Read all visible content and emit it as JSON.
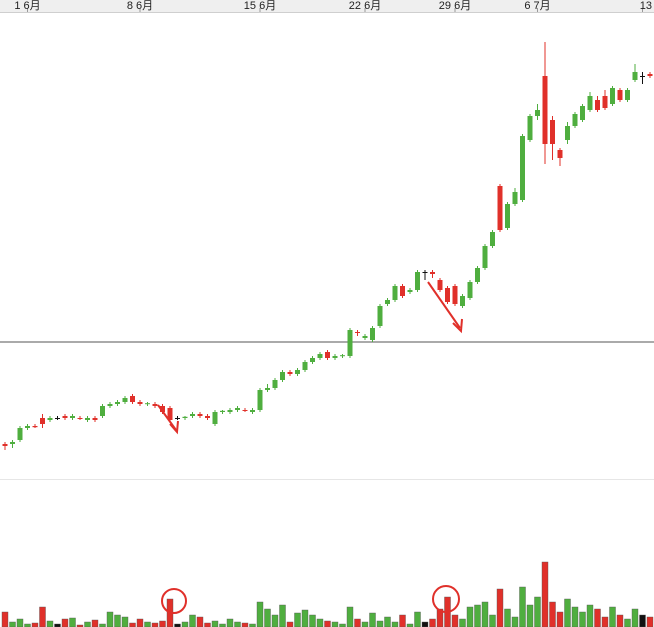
{
  "chart_data": {
    "type": "candlestick",
    "xticks": [
      {
        "value": 3,
        "label": "1 6月"
      },
      {
        "value": 18,
        "label": "8 6月"
      },
      {
        "value": 34,
        "label": "15 6月"
      },
      {
        "value": 48,
        "label": "22 6月"
      },
      {
        "value": 60,
        "label": "29 6月"
      },
      {
        "value": 71,
        "label": "6 7月"
      },
      {
        "value": 85,
        "label": "13"
      }
    ],
    "ylim": [
      0,
      120
    ],
    "vlim": [
      0,
      150
    ],
    "hline": 34.5,
    "up_color": "#4fae3f",
    "down_color": "#e0302a",
    "flat_color": "#111111",
    "candles": [
      [
        9,
        8.5,
        9.5,
        7.5
      ],
      [
        9,
        9.5,
        10,
        8
      ],
      [
        10,
        13,
        13.5,
        9.5
      ],
      [
        13,
        13.5,
        14,
        12.5
      ],
      [
        13.5,
        13.2,
        14,
        13
      ],
      [
        15.5,
        14,
        16.5,
        13
      ],
      [
        15,
        15.5,
        16,
        14.5
      ],
      [
        15.5,
        15.5,
        16,
        15
      ],
      [
        16,
        15.5,
        16.5,
        15
      ],
      [
        15.5,
        16,
        16.5,
        15
      ],
      [
        15.5,
        15.3,
        16,
        15
      ],
      [
        15,
        15.5,
        16,
        14.5
      ],
      [
        15.5,
        15,
        16,
        14.5
      ],
      [
        16,
        18.5,
        19,
        15.5
      ],
      [
        18.5,
        19,
        19.5,
        18
      ],
      [
        19,
        19.5,
        20,
        18.5
      ],
      [
        19.5,
        20.5,
        21,
        19
      ],
      [
        21,
        19.5,
        21.5,
        19
      ],
      [
        19.5,
        19,
        20,
        18.5
      ],
      [
        19,
        19.2,
        19.5,
        18.5
      ],
      [
        19,
        18.5,
        19.5,
        18
      ],
      [
        18.5,
        17,
        19,
        16.5
      ],
      [
        18,
        15,
        18.5,
        14.5
      ],
      [
        15.5,
        15.5,
        16,
        15
      ],
      [
        15.5,
        15.8,
        16,
        15
      ],
      [
        16,
        16.5,
        17,
        15.5
      ],
      [
        16.5,
        16,
        17,
        15.5
      ],
      [
        16,
        15.5,
        16.5,
        15
      ],
      [
        14,
        17,
        17.5,
        13.5
      ],
      [
        17,
        17.3,
        17.5,
        16.5
      ],
      [
        17,
        17.5,
        18,
        16.5
      ],
      [
        17.5,
        18,
        18.5,
        17
      ],
      [
        17.5,
        17.3,
        18,
        17
      ],
      [
        17,
        17.5,
        18,
        16.5
      ],
      [
        17.5,
        22.5,
        23,
        17
      ],
      [
        22.5,
        23,
        24,
        22
      ],
      [
        23,
        25,
        25.5,
        22.5
      ],
      [
        25,
        27,
        27.5,
        24.5
      ],
      [
        27,
        26.5,
        27.5,
        26
      ],
      [
        26.5,
        27.5,
        28,
        26
      ],
      [
        27.5,
        29.5,
        30,
        27
      ],
      [
        29.5,
        30.5,
        31,
        29
      ],
      [
        30.5,
        31.5,
        32,
        30
      ],
      [
        32,
        30.5,
        32.5,
        30
      ],
      [
        30.5,
        31,
        31.5,
        30
      ],
      [
        31,
        31.2,
        31.5,
        30.5
      ],
      [
        31,
        37.5,
        38,
        30.5
      ],
      [
        37,
        36.8,
        37.5,
        36
      ],
      [
        35.5,
        36,
        36.5,
        35
      ],
      [
        35,
        38,
        38.5,
        34.5
      ],
      [
        38.5,
        43.5,
        44,
        38
      ],
      [
        44,
        45,
        45.5,
        43.5
      ],
      [
        45,
        48.5,
        49,
        44.5
      ],
      [
        48.5,
        46,
        49,
        45.5
      ],
      [
        47,
        47.5,
        48,
        46.5
      ],
      [
        47.5,
        52,
        52.5,
        47
      ],
      [
        52,
        52,
        52.5,
        50
      ],
      [
        52,
        51.5,
        52.5,
        50.5
      ],
      [
        50,
        47.5,
        50.5,
        47
      ],
      [
        48,
        44.5,
        48.5,
        44
      ],
      [
        48.5,
        44,
        49,
        43.5
      ],
      [
        43.5,
        46,
        46.5,
        43
      ],
      [
        45.5,
        49.5,
        50,
        45
      ],
      [
        49.5,
        53,
        53.5,
        49
      ],
      [
        53,
        58.5,
        59,
        52.5
      ],
      [
        58.5,
        62,
        62.5,
        58
      ],
      [
        73.5,
        62.5,
        74,
        62
      ],
      [
        63,
        69,
        69.5,
        62.5
      ],
      [
        69,
        72,
        73,
        68.5
      ],
      [
        70,
        86,
        86.5,
        69.5
      ],
      [
        85,
        91,
        91.5,
        84.5
      ],
      [
        91,
        92.5,
        94,
        90
      ],
      [
        101,
        84,
        109.5,
        79
      ],
      [
        90,
        84,
        91,
        80
      ],
      [
        82.5,
        80.5,
        83,
        78.5
      ],
      [
        85,
        88.5,
        89.5,
        84
      ],
      [
        88.5,
        91.5,
        92,
        88
      ],
      [
        90,
        93.5,
        94,
        89.5
      ],
      [
        92.5,
        96,
        97,
        92
      ],
      [
        95,
        92.5,
        96,
        92
      ],
      [
        96,
        93,
        97.5,
        92.5
      ],
      [
        94,
        98,
        98.5,
        93.5
      ],
      [
        97.5,
        95,
        98,
        94.5
      ],
      [
        95,
        97.5,
        98,
        94.5
      ],
      [
        100,
        102,
        104,
        99.5
      ],
      [
        101,
        101,
        102,
        99
      ],
      [
        101.5,
        101,
        102,
        100.5
      ]
    ],
    "volume": [
      15,
      5,
      8,
      3,
      4,
      20,
      6,
      3,
      8,
      9,
      2,
      5,
      7,
      3,
      15,
      12,
      10,
      4,
      8,
      5,
      4,
      6,
      28,
      3,
      5,
      12,
      10,
      4,
      6,
      3,
      8,
      5,
      4,
      3,
      25,
      18,
      12,
      22,
      5,
      14,
      17,
      12,
      8,
      6,
      5,
      3,
      20,
      8,
      5,
      14,
      6,
      10,
      5,
      12,
      3,
      15,
      5,
      8,
      18,
      30,
      12,
      8,
      20,
      22,
      25,
      12,
      38,
      18,
      10,
      40,
      22,
      30,
      65,
      25,
      15,
      28,
      20,
      15,
      22,
      18,
      10,
      20,
      12,
      8,
      18,
      12,
      10
    ]
  }
}
